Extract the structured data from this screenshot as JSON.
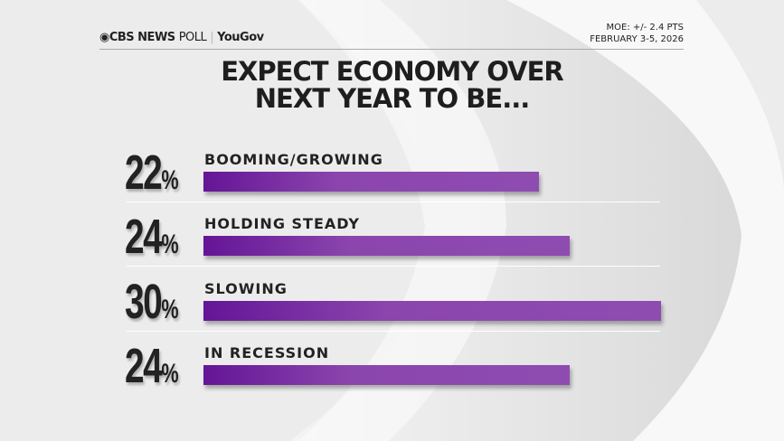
{
  "header": {
    "brand": "CBS NEWS",
    "poll": "POLL",
    "partner": "YouGov",
    "moe": "MOE: +/- 2.4 PTS",
    "dates": "FEBRUARY 3-5, 2026"
  },
  "chart_data": {
    "type": "bar",
    "orientation": "horizontal",
    "title": "EXPECT ECONOMY OVER NEXT YEAR TO BE...",
    "title_lines": [
      "EXPECT ECONOMY OVER",
      "NEXT YEAR TO BE..."
    ],
    "categories": [
      "BOOMING/GROWING",
      "HOLDING STEADY",
      "SLOWING",
      "IN RECESSION"
    ],
    "values": [
      22,
      24,
      30,
      24
    ],
    "value_labels": [
      "22",
      "24",
      "30",
      "24"
    ],
    "unit": "%",
    "bar_color": "#8b45ad"
  }
}
